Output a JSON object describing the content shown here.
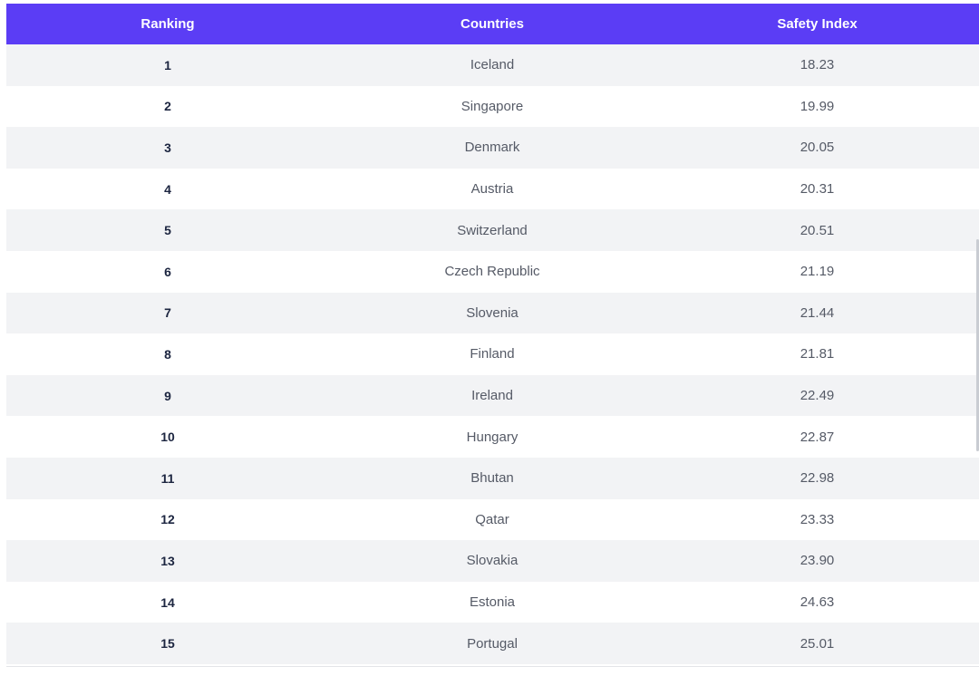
{
  "table": {
    "headers": [
      "Ranking",
      "Countries",
      "Safety Index"
    ],
    "rows": [
      {
        "rank": "1",
        "country": "Iceland",
        "index": "18.23"
      },
      {
        "rank": "2",
        "country": "Singapore",
        "index": "19.99"
      },
      {
        "rank": "3",
        "country": "Denmark",
        "index": "20.05"
      },
      {
        "rank": "4",
        "country": "Austria",
        "index": "20.31"
      },
      {
        "rank": "5",
        "country": "Switzerland",
        "index": "20.51"
      },
      {
        "rank": "6",
        "country": "Czech Republic",
        "index": "21.19"
      },
      {
        "rank": "7",
        "country": "Slovenia",
        "index": "21.44"
      },
      {
        "rank": "8",
        "country": "Finland",
        "index": "21.81"
      },
      {
        "rank": "9",
        "country": "Ireland",
        "index": "22.49"
      },
      {
        "rank": "10",
        "country": "Hungary",
        "index": "22.87"
      },
      {
        "rank": "11",
        "country": "Bhutan",
        "index": "22.98"
      },
      {
        "rank": "12",
        "country": "Qatar",
        "index": "23.33"
      },
      {
        "rank": "13",
        "country": "Slovakia",
        "index": "23.90"
      },
      {
        "rank": "14",
        "country": "Estonia",
        "index": "24.63"
      },
      {
        "rank": "15",
        "country": "Portugal",
        "index": "25.01"
      }
    ]
  },
  "colors": {
    "header_bg": "#5b3df5",
    "header_text": "#ffffff",
    "row_alt_bg": "#f2f3f5",
    "rank_text": "#1c2540",
    "cell_text": "#555a66"
  }
}
